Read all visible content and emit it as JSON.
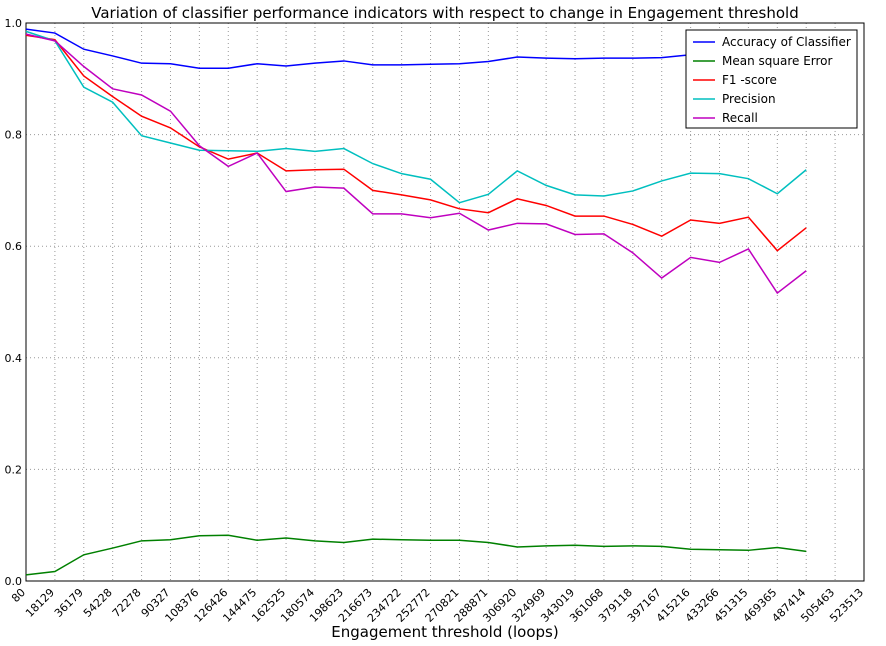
{
  "chart_data": {
    "type": "line",
    "title": "Variation of classifier performance indicators with respect to change in Engagement threshold",
    "xlabel": "Engagement threshold (loops)",
    "x": [
      80,
      18129,
      36179,
      54228,
      72278,
      90327,
      108376,
      126426,
      144475,
      162525,
      180574,
      198623,
      216673,
      234722,
      252772,
      270821,
      288871,
      306920,
      324969,
      343019,
      361068,
      379118,
      397167,
      415216,
      433266,
      451315,
      469365,
      487414
    ],
    "series": [
      {
        "name": "Accuracy of Classifier",
        "color": "#0000ff",
        "values": [
          0.989,
          0.982,
          0.953,
          0.941,
          0.928,
          0.927,
          0.919,
          0.919,
          0.927,
          0.923,
          0.928,
          0.932,
          0.925,
          0.925,
          0.926,
          0.927,
          0.931,
          0.939,
          0.937,
          0.936,
          0.937,
          0.937,
          0.938,
          0.943,
          0.945,
          0.946,
          0.944,
          0.948
        ]
      },
      {
        "name": "Mean square Error",
        "color": "#008000",
        "values": [
          0.011,
          0.017,
          0.047,
          0.059,
          0.072,
          0.074,
          0.081,
          0.082,
          0.073,
          0.077,
          0.072,
          0.069,
          0.075,
          0.074,
          0.073,
          0.073,
          0.069,
          0.061,
          0.063,
          0.064,
          0.062,
          0.063,
          0.062,
          0.057,
          0.056,
          0.055,
          0.06,
          0.053
        ]
      },
      {
        "name": "F1 -score",
        "color": "#ff0000",
        "values": [
          0.978,
          0.97,
          0.905,
          0.868,
          0.833,
          0.812,
          0.778,
          0.756,
          0.767,
          0.735,
          0.737,
          0.738,
          0.7,
          0.692,
          0.683,
          0.667,
          0.66,
          0.685,
          0.673,
          0.654,
          0.654,
          0.639,
          0.618,
          0.647,
          0.641,
          0.652,
          0.592,
          0.633
        ]
      },
      {
        "name": "Precision",
        "color": "#00bfbf",
        "values": [
          0.985,
          0.968,
          0.885,
          0.858,
          0.798,
          0.785,
          0.772,
          0.771,
          0.77,
          0.775,
          0.77,
          0.775,
          0.748,
          0.73,
          0.72,
          0.678,
          0.693,
          0.735,
          0.709,
          0.692,
          0.69,
          0.699,
          0.717,
          0.731,
          0.73,
          0.721,
          0.694,
          0.737
        ]
      },
      {
        "name": "Recall",
        "color": "#bf00bf",
        "values": [
          0.98,
          0.968,
          0.922,
          0.882,
          0.871,
          0.842,
          0.78,
          0.743,
          0.767,
          0.698,
          0.706,
          0.704,
          0.658,
          0.658,
          0.651,
          0.659,
          0.629,
          0.641,
          0.64,
          0.621,
          0.622,
          0.588,
          0.543,
          0.58,
          0.571,
          0.595,
          0.516,
          0.556
        ]
      }
    ],
    "xlim": [
      80,
      523513
    ],
    "xticks": [
      80,
      18129,
      36179,
      54228,
      72278,
      90327,
      108376,
      126426,
      144475,
      162525,
      180574,
      198623,
      216673,
      234722,
      252772,
      270821,
      288871,
      306920,
      324969,
      343019,
      361068,
      379118,
      397167,
      415216,
      433266,
      451315,
      469365,
      487414,
      505463,
      523513
    ],
    "ylim": [
      0,
      1
    ],
    "yticks": [
      {
        "value": 0,
        "label": "0.0"
      },
      {
        "value": 0.2,
        "label": "0.2"
      },
      {
        "value": 0.4,
        "label": "0.4"
      },
      {
        "value": 0.6,
        "label": "0.6"
      },
      {
        "value": 0.8,
        "label": "0.8"
      },
      {
        "value": 1,
        "label": "1.0"
      }
    ],
    "grid": true,
    "legend": "upper right"
  }
}
